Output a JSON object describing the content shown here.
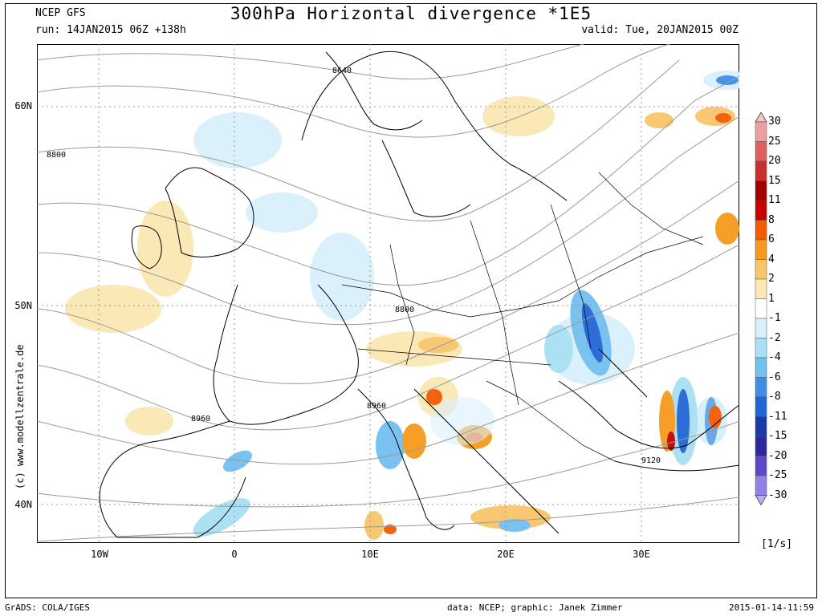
{
  "header": {
    "model": "NCEP GFS",
    "run": "run: 14JAN2015 06Z +138h",
    "title": "300hPa Horizontal divergence *1E5",
    "valid": "valid: Tue, 20JAN2015 00Z"
  },
  "lat_labels": [
    "60N",
    "50N",
    "40N"
  ],
  "lon_labels": [
    "10W",
    "0",
    "10E",
    "20E",
    "30E"
  ],
  "contour_labels": [
    "8640",
    "8800",
    "8800",
    "8960",
    "8960",
    "9120"
  ],
  "colorbar": {
    "levels": [
      "30",
      "25",
      "20",
      "15",
      "11",
      "8",
      "6",
      "4",
      "2",
      "1",
      "-1",
      "-2",
      "-4",
      "-6",
      "-8",
      "-11",
      "-15",
      "-20",
      "-25",
      "-30"
    ],
    "colors": [
      "#f2c7c7",
      "#eba0a0",
      "#e06060",
      "#c83030",
      "#a00000",
      "#c80000",
      "#f55a00",
      "#f59a1e",
      "#f7c66a",
      "#fbe7b4",
      "#ffffff",
      "#d9f0fb",
      "#a8e0f4",
      "#72bff0",
      "#3f8ee6",
      "#2266d6",
      "#1a3aa8",
      "#2b28a0",
      "#5c48c8",
      "#8f82e6",
      "#b6b0f0"
    ],
    "units": "[1/s]"
  },
  "credit": "(c) www.modellzentrale.de",
  "footer": {
    "left": "GrADS: COLA/IGES",
    "center": "data: NCEP; graphic: Janek Zimmer",
    "right": "2015-01-14-11:59"
  }
}
